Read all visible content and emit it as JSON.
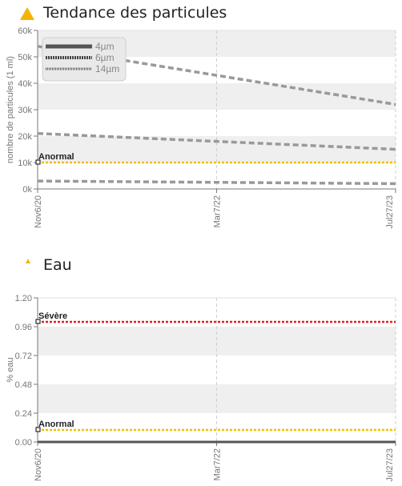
{
  "colors": {
    "warning": "#f5b400",
    "severe": "#e02020",
    "abnormal": "#f2c000",
    "series": "#999999",
    "band": "#efefef"
  },
  "chart_data": [
    {
      "type": "line",
      "title": "Tendance des particules",
      "ylabel": "nombre de particules (1 ml)",
      "x_ticks": [
        "Nov6/20",
        "Mar7/22",
        "Jul27/23"
      ],
      "x": [
        "2020-11-06",
        "2023-07-27"
      ],
      "ylim": [
        0,
        60000
      ],
      "y_ticks": [
        "0k",
        "10k",
        "20k",
        "30k",
        "40k",
        "50k",
        "60k"
      ],
      "series": [
        {
          "name": "4µm",
          "values": [
            54000,
            32000
          ]
        },
        {
          "name": "6µm",
          "values": [
            21000,
            15000
          ]
        },
        {
          "name": "14µm",
          "values": [
            3000,
            2000
          ]
        }
      ],
      "thresholds": [
        {
          "label": "Anormal",
          "value": 10000,
          "color": "#f2c000"
        }
      ],
      "legend": "top-left",
      "grid": true
    },
    {
      "type": "line",
      "title": "Eau",
      "ylabel": "% eau",
      "x_ticks": [
        "Nov6/20",
        "Mar7/22",
        "Jul27/23"
      ],
      "x": [
        "2020-11-06",
        "2023-07-27"
      ],
      "ylim": [
        0,
        1.2
      ],
      "y_ticks": [
        "0.00",
        "0.24",
        "0.48",
        "0.72",
        "0.96",
        "1.20"
      ],
      "series": [
        {
          "values": [
            0,
            0
          ]
        }
      ],
      "thresholds": [
        {
          "label": "Sévère",
          "value": 1.0,
          "color": "#e02020"
        },
        {
          "label": "Anormal",
          "value": 0.1,
          "color": "#f2c000"
        }
      ],
      "grid": true
    }
  ]
}
